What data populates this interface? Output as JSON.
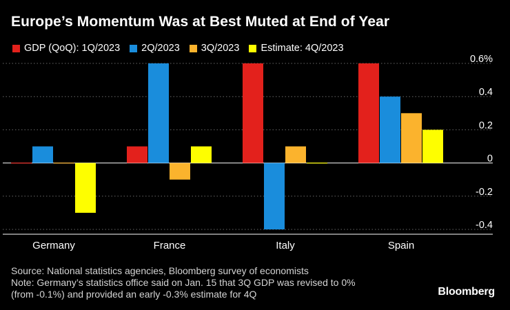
{
  "title": "Europe’s Momentum Was at Best Muted at End of Year",
  "legend": [
    {
      "label": "GDP (QoQ): 1Q/2023",
      "color": "#e3211c"
    },
    {
      "label": "2Q/2023",
      "color": "#1a8ddc"
    },
    {
      "label": "3Q/2023",
      "color": "#fbb32d"
    },
    {
      "label": "Estimate: 4Q/2023",
      "color": "#fefe00"
    }
  ],
  "chart_data": {
    "type": "bar",
    "categories": [
      "Germany",
      "France",
      "Italy",
      "Spain"
    ],
    "series": [
      {
        "name": "GDP (QoQ): 1Q/2023",
        "color": "#e3211c",
        "values": [
          0.0,
          0.1,
          0.6,
          0.6
        ]
      },
      {
        "name": "2Q/2023",
        "color": "#1a8ddc",
        "values": [
          0.1,
          0.6,
          -0.4,
          0.4
        ]
      },
      {
        "name": "3Q/2023",
        "color": "#fbb32d",
        "values": [
          0.0,
          -0.1,
          0.1,
          0.3
        ]
      },
      {
        "name": "Estimate: 4Q/2023",
        "color": "#fefe00",
        "values": [
          -0.3,
          0.1,
          0.0,
          0.2
        ]
      }
    ],
    "ylim": [
      -0.4,
      0.6
    ],
    "yticks": [
      0.6,
      0.4,
      0.2,
      0,
      -0.2,
      -0.4
    ],
    "ytick_labels": [
      "0.6%",
      "0.4",
      "0.2",
      "0",
      "-0.2",
      "-0.4"
    ],
    "grid": true,
    "legend_position": "top-left",
    "xlabel": "",
    "ylabel": ""
  },
  "footer": {
    "source": "Source: National statistics agencies, Bloomberg survey of economists",
    "note_line1": "Note: Germany’s statistics office said on Jan. 15 that 3Q GDP was revised to 0%",
    "note_line2": "(from -0.1%) and provided an early -0.3% estimate for 4Q"
  },
  "brand": "Bloomberg"
}
